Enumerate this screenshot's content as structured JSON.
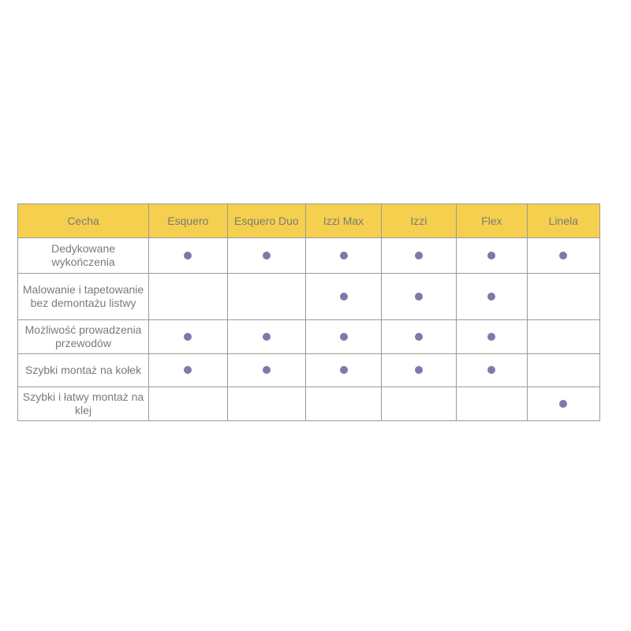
{
  "colors": {
    "header": "#f5d04e",
    "dot": "#7b7aa8"
  },
  "columns": [
    "Cecha",
    "Esquero",
    "Esquero Duo",
    "Izzi Max",
    "Izzi",
    "Flex",
    "Linela"
  ],
  "rows": [
    {
      "feature": "Dedykowane wykończenia",
      "marks": [
        true,
        true,
        true,
        true,
        true,
        true
      ]
    },
    {
      "feature": "Malowanie i tapetowanie bez demontażu listwy",
      "marks": [
        false,
        false,
        true,
        true,
        true,
        false
      ]
    },
    {
      "feature": "Możliwość prowadzenia przewodów",
      "marks": [
        true,
        true,
        true,
        true,
        true,
        false
      ]
    },
    {
      "feature": "Szybki montaż na kołek",
      "marks": [
        true,
        true,
        true,
        true,
        true,
        false
      ]
    },
    {
      "feature": "Szybki i łatwy montaż na klej",
      "marks": [
        false,
        false,
        false,
        false,
        false,
        true
      ]
    }
  ]
}
